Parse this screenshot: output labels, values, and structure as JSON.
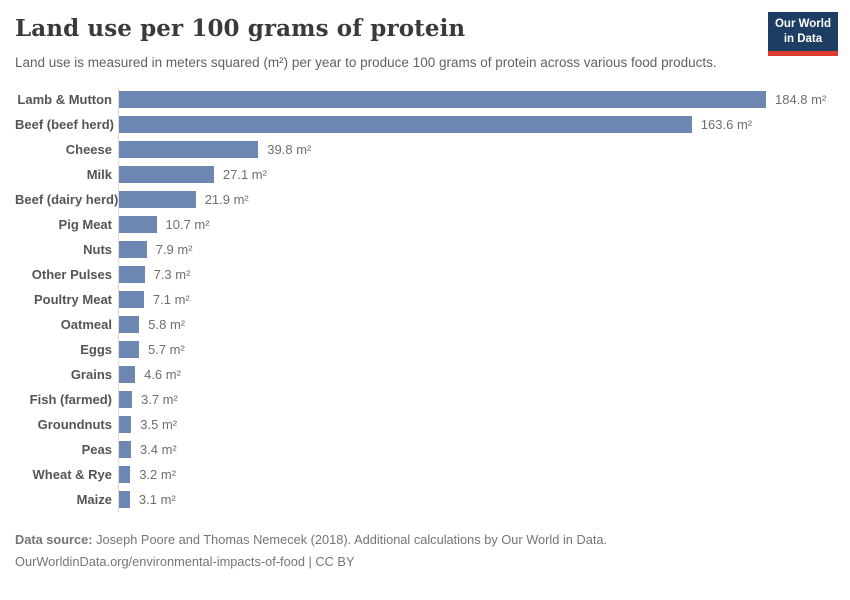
{
  "header": {
    "title": "Land use per 100 grams of protein",
    "subtitle": "Land use is measured in meters squared (m²) per year to produce 100 grams of protein across various food products.",
    "logo": {
      "line1": "Our World",
      "line2": "in Data",
      "bg_color": "#1d3d63",
      "stripe_color": "#dc3a2c"
    }
  },
  "chart_data": {
    "type": "bar",
    "orientation": "horizontal",
    "title": "Land use per 100 grams of protein",
    "xlabel": "",
    "ylabel": "",
    "unit": "m²",
    "xlim": [
      0,
      184.8
    ],
    "grid": false,
    "legend": false,
    "bar_color": "#6e87b2",
    "categories": [
      "Lamb & Mutton",
      "Beef (beef herd)",
      "Cheese",
      "Milk",
      "Beef (dairy herd)",
      "Pig Meat",
      "Nuts",
      "Other Pulses",
      "Poultry Meat",
      "Oatmeal",
      "Eggs",
      "Grains",
      "Fish (farmed)",
      "Groundnuts",
      "Peas",
      "Wheat & Rye",
      "Maize"
    ],
    "values": [
      184.8,
      163.6,
      39.8,
      27.1,
      21.9,
      10.7,
      7.9,
      7.3,
      7.1,
      5.8,
      5.7,
      4.6,
      3.7,
      3.5,
      3.4,
      3.2,
      3.1
    ],
    "value_labels": [
      "184.8 m²",
      "163.6 m²",
      "39.8 m²",
      "27.1 m²",
      "21.9 m²",
      "10.7 m²",
      "7.9 m²",
      "7.3 m²",
      "7.1 m²",
      "5.8 m²",
      "5.7 m²",
      "4.6 m²",
      "3.7 m²",
      "3.5 m²",
      "3.4 m²",
      "3.2 m²",
      "3.1 m²"
    ]
  },
  "footer": {
    "source_label": "Data source:",
    "source_text": " Joseph Poore and Thomas Nemecek (2018). Additional calculations by Our World in Data.",
    "link_line": "OurWorldinData.org/environmental-impacts-of-food | CC BY"
  }
}
